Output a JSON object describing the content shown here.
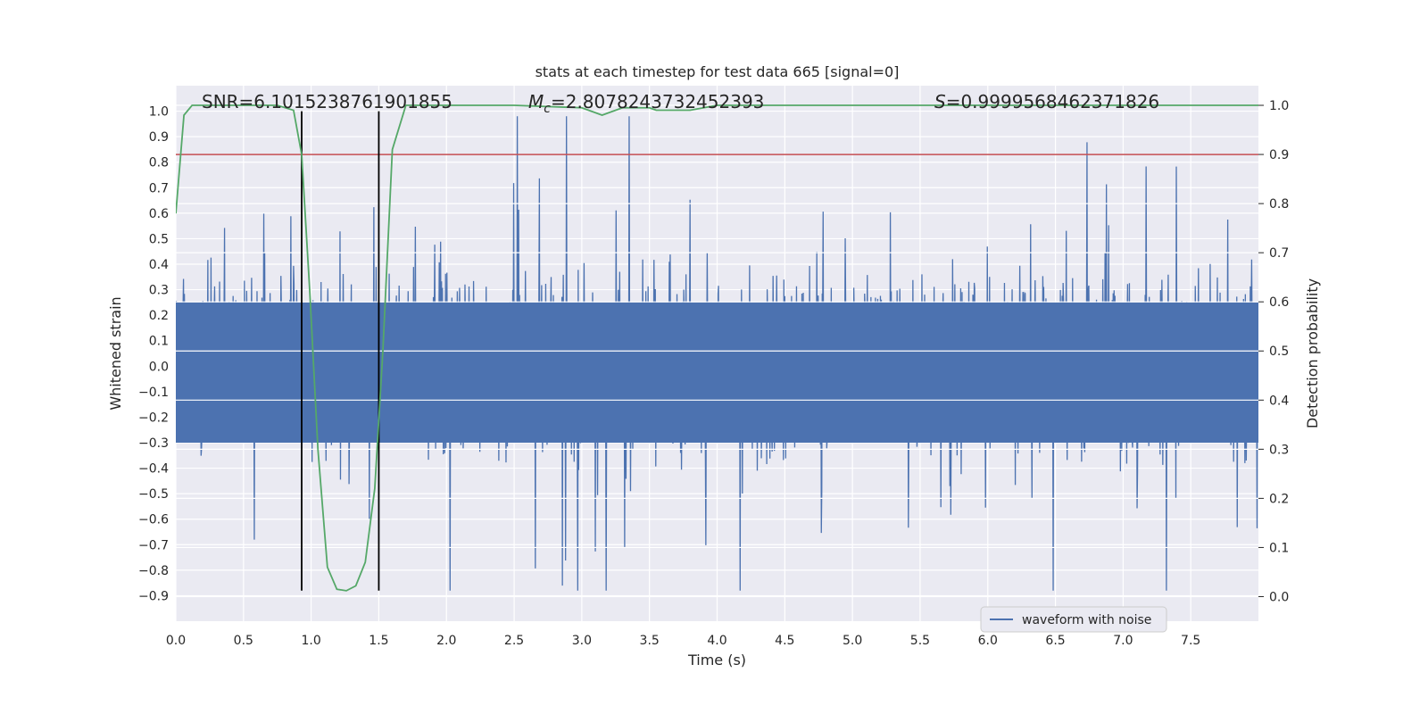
{
  "chart_data": {
    "type": "line",
    "title": "stats at each timestep for test data 665 [signal=0]",
    "xlabel": "Time (s)",
    "ylabel": "Whitened strain",
    "y2label": "Detection probability",
    "xlim": [
      0,
      8
    ],
    "ylim": [
      -1.0,
      1.1
    ],
    "y2lim": [
      -0.05,
      1.04
    ],
    "x_ticks": [
      0.0,
      0.5,
      1.0,
      1.5,
      2.0,
      2.5,
      3.0,
      3.5,
      4.0,
      4.5,
      5.0,
      5.5,
      6.0,
      6.5,
      7.0,
      7.5
    ],
    "x_tick_labels": [
      "0.0",
      "0.5",
      "1.0",
      "1.5",
      "2.0",
      "2.5",
      "3.0",
      "3.5",
      "4.0",
      "4.5",
      "5.0",
      "5.5",
      "6.0",
      "6.5",
      "7.0",
      "7.5"
    ],
    "y_ticks": [
      -0.9,
      -0.8,
      -0.7,
      -0.6,
      -0.5,
      -0.4,
      -0.3,
      -0.2,
      -0.1,
      0.0,
      0.1,
      0.2,
      0.3,
      0.4,
      0.5,
      0.6,
      0.7,
      0.8,
      0.9,
      1.0
    ],
    "y_tick_labels": [
      "−0.9",
      "−0.8",
      "−0.7",
      "−0.6",
      "−0.5",
      "−0.4",
      "−0.3",
      "−0.2",
      "−0.1",
      "0.0",
      "0.1",
      "0.2",
      "0.3",
      "0.4",
      "0.5",
      "0.6",
      "0.7",
      "0.8",
      "0.9",
      "1.0"
    ],
    "y2_ticks": [
      0.0,
      0.1,
      0.2,
      0.3,
      0.4,
      0.5,
      0.6,
      0.7,
      0.8,
      0.9,
      1.0
    ],
    "y2_tick_labels": [
      "0.0",
      "0.1",
      "0.2",
      "0.3",
      "0.4",
      "0.5",
      "0.6",
      "0.7",
      "0.8",
      "0.9",
      "1.0"
    ],
    "annotations": {
      "snr": "SNR=6.1015238761901855",
      "mc_symbol": "M",
      "mc_sub": "c",
      "mc_value": "=2.8078243732452393",
      "s_symbol": "S",
      "s_value": "=0.9999568462371826"
    },
    "legend": {
      "label": "waveform with noise",
      "placement": "lower-right"
    },
    "threshold": {
      "y2": 0.9,
      "color": "#c44e52"
    },
    "vertical_markers": {
      "x": [
        0.93,
        1.5
      ],
      "y_range": [
        -0.88,
        1.0
      ],
      "color": "#000000"
    },
    "series": [
      {
        "name": "waveform with noise",
        "axis": "left",
        "color": "#4c72b0",
        "description_points": {
          "duration_s": 8.0,
          "typical_amplitude": 0.3,
          "peak_max": 1.0,
          "peak_min": -0.88
        }
      },
      {
        "axis": "right",
        "color": "#55a868",
        "x": [
          0.0,
          0.06,
          0.12,
          0.2,
          0.4,
          0.6,
          0.75,
          0.87,
          0.93,
          0.99,
          1.05,
          1.12,
          1.19,
          1.26,
          1.33,
          1.4,
          1.47,
          1.53,
          1.6,
          1.7,
          2.0,
          2.5,
          3.0,
          3.1,
          3.15,
          3.2,
          3.3,
          3.5,
          3.55,
          3.7,
          3.8,
          3.9,
          4.0,
          5.0,
          6.0,
          7.0,
          8.0
        ],
        "y": [
          0.78,
          0.98,
          1.0,
          1.0,
          1.0,
          1.0,
          1.0,
          0.99,
          0.9,
          0.62,
          0.3,
          0.06,
          0.015,
          0.012,
          0.022,
          0.07,
          0.22,
          0.5,
          0.91,
          1.0,
          1.0,
          1.0,
          0.995,
          0.985,
          0.98,
          0.985,
          0.995,
          0.995,
          0.99,
          0.99,
          0.99,
          0.995,
          1.0,
          1.0,
          1.0,
          1.0,
          1.0
        ]
      }
    ],
    "grid": true,
    "colors": {
      "background": "#eaeaf2",
      "grid": "#ffffff",
      "waveform": "#4c72b0",
      "probability": "#55a868",
      "threshold": "#c44e52"
    }
  }
}
